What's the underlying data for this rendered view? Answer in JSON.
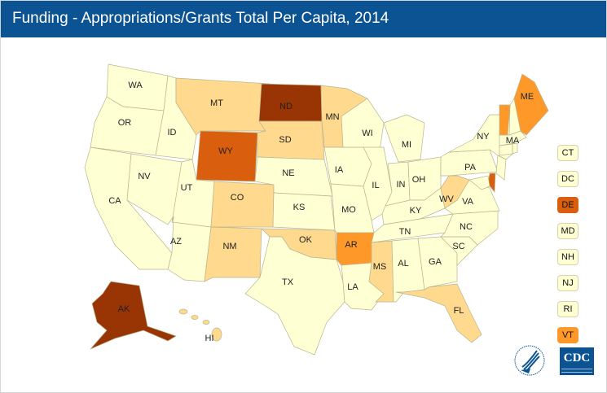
{
  "title": "Funding - Appropriations/Grants Total Per Capita, 2014",
  "colors": {
    "c1": "#ffffd4",
    "c2": "#fed98e",
    "c3": "#fe9929",
    "c4": "#d95f0e",
    "c5": "#993404",
    "header": "#0b5392"
  },
  "states": [
    {
      "id": "WA",
      "c": "c1"
    },
    {
      "id": "OR",
      "c": "c1"
    },
    {
      "id": "CA",
      "c": "c1"
    },
    {
      "id": "NV",
      "c": "c1"
    },
    {
      "id": "ID",
      "c": "c1"
    },
    {
      "id": "MT",
      "c": "c2"
    },
    {
      "id": "WY",
      "c": "c4"
    },
    {
      "id": "UT",
      "c": "c1"
    },
    {
      "id": "AZ",
      "c": "c1"
    },
    {
      "id": "CO",
      "c": "c2"
    },
    {
      "id": "NM",
      "c": "c2"
    },
    {
      "id": "ND",
      "c": "c5"
    },
    {
      "id": "SD",
      "c": "c2"
    },
    {
      "id": "NE",
      "c": "c1"
    },
    {
      "id": "KS",
      "c": "c1"
    },
    {
      "id": "OK",
      "c": "c2"
    },
    {
      "id": "TX",
      "c": "c1"
    },
    {
      "id": "MN",
      "c": "c2"
    },
    {
      "id": "IA",
      "c": "c1"
    },
    {
      "id": "MO",
      "c": "c1"
    },
    {
      "id": "AR",
      "c": "c3"
    },
    {
      "id": "LA",
      "c": "c1"
    },
    {
      "id": "WI",
      "c": "c1"
    },
    {
      "id": "IL",
      "c": "c1"
    },
    {
      "id": "MI",
      "c": "c1"
    },
    {
      "id": "IN",
      "c": "c1"
    },
    {
      "id": "OH",
      "c": "c1"
    },
    {
      "id": "KY",
      "c": "c1"
    },
    {
      "id": "TN",
      "c": "c1"
    },
    {
      "id": "MS",
      "c": "c2"
    },
    {
      "id": "AL",
      "c": "c1"
    },
    {
      "id": "GA",
      "c": "c1"
    },
    {
      "id": "FL",
      "c": "c2"
    },
    {
      "id": "SC",
      "c": "c1"
    },
    {
      "id": "NC",
      "c": "c1"
    },
    {
      "id": "VA",
      "c": "c1"
    },
    {
      "id": "WV",
      "c": "c2"
    },
    {
      "id": "PA",
      "c": "c1"
    },
    {
      "id": "NY",
      "c": "c1"
    },
    {
      "id": "NJ",
      "c": "c1"
    },
    {
      "id": "DE",
      "c": "c4"
    },
    {
      "id": "MD",
      "c": "c1"
    },
    {
      "id": "VT",
      "c": "c3"
    },
    {
      "id": "NH",
      "c": "c1"
    },
    {
      "id": "ME",
      "c": "c3"
    },
    {
      "id": "MA",
      "c": "c1"
    },
    {
      "id": "CT",
      "c": "c1"
    },
    {
      "id": "RI",
      "c": "c1"
    },
    {
      "id": "AK",
      "c": "c5"
    },
    {
      "id": "HI",
      "c": "c2"
    }
  ],
  "legend": [
    {
      "id": "CT",
      "c": "c1"
    },
    {
      "id": "DC",
      "c": "c1"
    },
    {
      "id": "DE",
      "c": "c4"
    },
    {
      "id": "MD",
      "c": "c1"
    },
    {
      "id": "NH",
      "c": "c1"
    },
    {
      "id": "NJ",
      "c": "c1"
    },
    {
      "id": "RI",
      "c": "c1"
    },
    {
      "id": "VT",
      "c": "c3"
    }
  ],
  "logos": {
    "cdc": "CDC"
  }
}
